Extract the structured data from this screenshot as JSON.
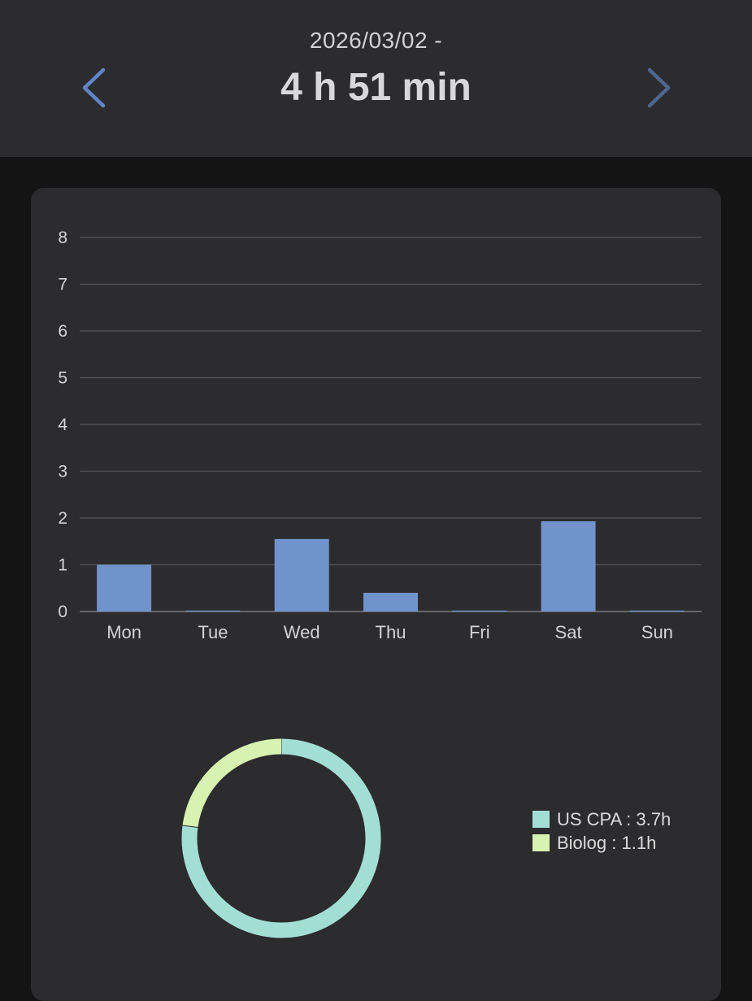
{
  "header": {
    "range": "2026/03/02 -",
    "total": "4 h 51 min",
    "prev_icon": "chevron-left-icon",
    "next_icon": "chevron-right-icon"
  },
  "colors": {
    "accent": "#5f86c8",
    "bar": "#7093cc",
    "us_cpa": "#a3ded4",
    "biolog": "#d7f2b1"
  },
  "chart_data": [
    {
      "type": "bar",
      "categories": [
        "Mon",
        "Tue",
        "Wed",
        "Thu",
        "Fri",
        "Sat",
        "Sun"
      ],
      "values": [
        1.0,
        0,
        1.55,
        0.4,
        0,
        1.93,
        0
      ],
      "yticks": [
        "0",
        "1",
        "2",
        "3",
        "4",
        "5",
        "6",
        "7",
        "8"
      ],
      "ylim": [
        0,
        8
      ],
      "grid": true,
      "title": "",
      "xlabel": "",
      "ylabel": ""
    },
    {
      "type": "pie",
      "variant": "donut",
      "labels": [
        "US CPA",
        "Biolog"
      ],
      "values": [
        3.7,
        1.1
      ],
      "legend": [
        "US CPA : 3.7h",
        "Biolog : 1.1h"
      ],
      "legend_position": "right"
    }
  ]
}
